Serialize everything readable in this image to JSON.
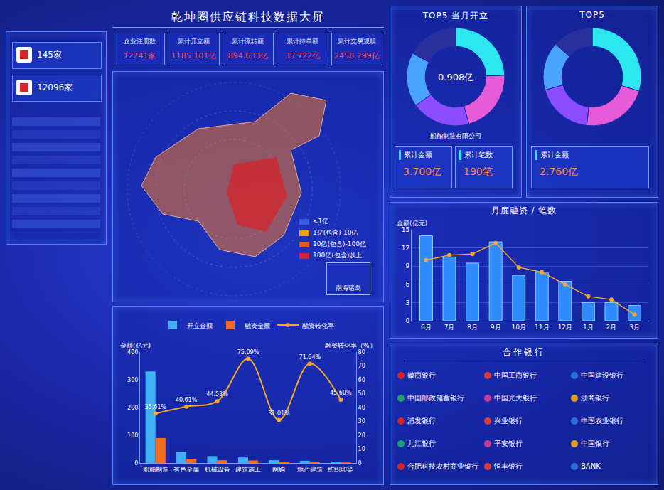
{
  "header": {
    "title": "乾坤圈供应链科技数据大屏"
  },
  "left_stats": [
    {
      "value": "145家"
    },
    {
      "value": "12096家"
    }
  ],
  "kpis": [
    {
      "label": "企业注册数",
      "value": "12241家"
    },
    {
      "label": "累计开立额",
      "value": "1185.101亿"
    },
    {
      "label": "累计流转额",
      "value": "894.633亿"
    },
    {
      "label": "累计持单额",
      "value": "35.722亿"
    },
    {
      "label": "累计交易规模",
      "value": "2458.299亿"
    }
  ],
  "map": {
    "legend": [
      {
        "label": "<1亿",
        "color": "#3b5bdb"
      },
      {
        "label": "1亿(包含)-10亿",
        "color": "#f59f00"
      },
      {
        "label": "10亿(包含)-100亿",
        "color": "#e8590c"
      },
      {
        "label": "100亿(包含)以上",
        "color": "#d6242a"
      }
    ],
    "inset": "南海诸岛"
  },
  "top5_panels": [
    {
      "title": "TOP5 当月开立",
      "center": "0.908亿",
      "company": "船舶制造有限公司",
      "stats": [
        {
          "label": "累计金额",
          "value": "3.700亿"
        },
        {
          "label": "累计笔数",
          "value": "190笔"
        }
      ]
    },
    {
      "title": "TOP5",
      "stats": [
        {
          "label": "累计金额",
          "value": "2.760亿"
        }
      ]
    }
  ],
  "chart_data": [
    {
      "type": "pie",
      "values": [
        0.908,
        0.78,
        0.72,
        0.66,
        0.63
      ],
      "colors": [
        "#2ee6f0",
        "#e85bd8",
        "#8a4dff",
        "#4aa3ff",
        "#2b2f9e"
      ]
    },
    {
      "type": "pie",
      "values": [
        0.82,
        0.61,
        0.52,
        0.44,
        0.37
      ],
      "colors": [
        "#2ee6f0",
        "#e85bd8",
        "#8a4dff",
        "#4aa3ff",
        "#2b2f9e"
      ]
    },
    {
      "type": "bar",
      "title": "月度融资 / 笔数",
      "y_label": "金额(亿元)",
      "categories": [
        "6月",
        "7月",
        "8月",
        "9月",
        "10月",
        "11月",
        "12月",
        "1月",
        "2月",
        "3月"
      ],
      "series": [
        {
          "type": "bar",
          "color": "#2f8cff",
          "values": [
            14,
            10.5,
            9.5,
            13,
            7.5,
            8,
            6.5,
            3,
            3,
            2.5
          ]
        },
        {
          "type": "line",
          "color": "#f5a623",
          "marker": "circle",
          "values": [
            10,
            10.8,
            11,
            12.8,
            8.8,
            8,
            6,
            4,
            3.5,
            1
          ]
        }
      ],
      "ylim": [
        0,
        15
      ],
      "yticks": [
        0,
        3,
        6,
        9,
        12,
        15
      ],
      "grid": true
    },
    {
      "type": "bar",
      "y_label": "金额(亿元)",
      "y2_label": "融资转化率（%）",
      "categories": [
        "船舶制造",
        "有色金属",
        "机械设备",
        "建筑施工",
        "网购",
        "地产建筑",
        "纺织印染"
      ],
      "series": [
        {
          "name": "开立金额",
          "type": "bar",
          "color": "#3fb0f5",
          "values": [
            330,
            40,
            25,
            20,
            10,
            8,
            5
          ]
        },
        {
          "name": "融资金额",
          "type": "bar",
          "color": "#f76b1c",
          "values": [
            90,
            15,
            10,
            9,
            3,
            5,
            2
          ]
        },
        {
          "name": "融资转化率",
          "type": "line",
          "axis": "y2",
          "color": "#f5a623",
          "marker": "circle",
          "values": [
            35.61,
            40.61,
            44.53,
            75.09,
            31.01,
            71.64,
            45.6
          ],
          "value_labels": [
            "35.61%",
            "40.61%",
            "44.53%",
            "75.09%",
            "31.01%",
            "71.64%",
            "45.60%"
          ]
        }
      ],
      "ylim": [
        0,
        400
      ],
      "yticks": [
        0,
        100,
        200,
        300,
        400
      ],
      "y2lim": [
        0,
        80
      ],
      "y2ticks": [
        0,
        10,
        20,
        30,
        40,
        50,
        60,
        70,
        80
      ],
      "legend": "top",
      "data_labels": true,
      "grid": false
    }
  ],
  "banks": {
    "title": "合作银行",
    "names": [
      "徽商银行",
      "中国工商银行",
      "中国建设银行",
      "中国邮政储蓄银行",
      "中国光大银行",
      "浙商银行",
      "浦发银行",
      "兴业银行",
      "中国农业银行",
      "九江银行",
      "平安银行",
      "中国银行",
      "合肥科技农村商业银行",
      "恒丰银行",
      "BANK"
    ]
  }
}
